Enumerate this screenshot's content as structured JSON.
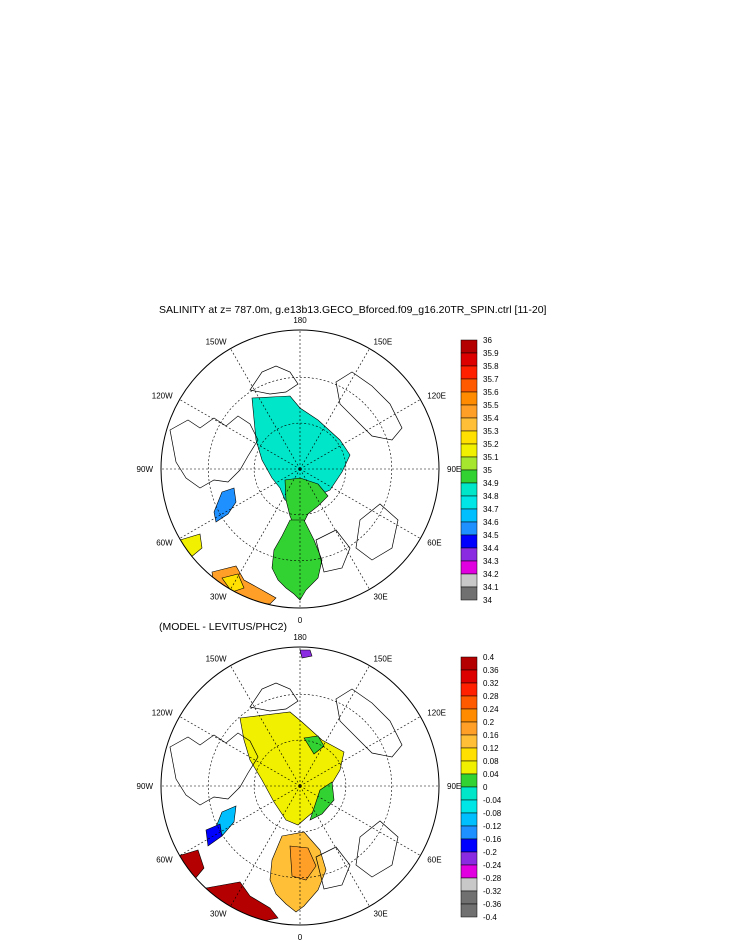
{
  "chart_data": [
    {
      "type": "heatmap",
      "title": "SALINITY at z= 787.0m, g.e13b13.GECO_Bforced.f09_g16.20TR_SPIN.ctrl [11-20]",
      "projection": "north polar stereographic",
      "longitude_labels": [
        "180",
        "150E",
        "120E",
        "90E",
        "60E",
        "30E",
        "0",
        "30W",
        "60W",
        "90W",
        "120W",
        "150W"
      ],
      "colorbar": {
        "labels": [
          "36",
          "35.9",
          "35.8",
          "35.7",
          "35.6",
          "35.5",
          "35.4",
          "35.3",
          "35.2",
          "35.1",
          "35",
          "34.9",
          "34.8",
          "34.7",
          "34.6",
          "34.5",
          "34.4",
          "34.3",
          "34.2",
          "34.1",
          "34"
        ],
        "colors": [
          "#b40000",
          "#dc0000",
          "#ff2000",
          "#ff5a00",
          "#ff8c00",
          "#ff9f28",
          "#ffc038",
          "#ffe000",
          "#f0f000",
          "#a6e62e",
          "#32d232",
          "#00e6c8",
          "#00e6e6",
          "#00bfff",
          "#1e90ff",
          "#0000ff",
          "#8a2be2",
          "#e000e0",
          "#c8c8c8",
          "#707070"
        ]
      }
    },
    {
      "type": "heatmap",
      "title": "(MODEL - LEVITUS/PHC2)",
      "projection": "north polar stereographic",
      "longitude_labels": [
        "180",
        "150E",
        "120E",
        "90E",
        "60E",
        "30E",
        "0",
        "30W",
        "60W",
        "90W",
        "120W",
        "150W"
      ],
      "colorbar": {
        "labels": [
          "0.4",
          "0.36",
          "0.32",
          "0.28",
          "0.24",
          "0.2",
          "0.16",
          "0.12",
          "0.08",
          "0.04",
          "0",
          "-0.04",
          "-0.08",
          "-0.12",
          "-0.16",
          "-0.2",
          "-0.24",
          "-0.28",
          "-0.32",
          "-0.36",
          "-0.4"
        ],
        "colors": [
          "#b40000",
          "#dc0000",
          "#ff2000",
          "#ff5a00",
          "#ff8c00",
          "#ff9f28",
          "#ffc038",
          "#ffe000",
          "#f0f000",
          "#32d232",
          "#00e6c8",
          "#00e6e6",
          "#00bfff",
          "#1e90ff",
          "#0000ff",
          "#8a2be2",
          "#e000e0",
          "#c8c8c8",
          "#707070",
          "#707070"
        ]
      }
    }
  ]
}
